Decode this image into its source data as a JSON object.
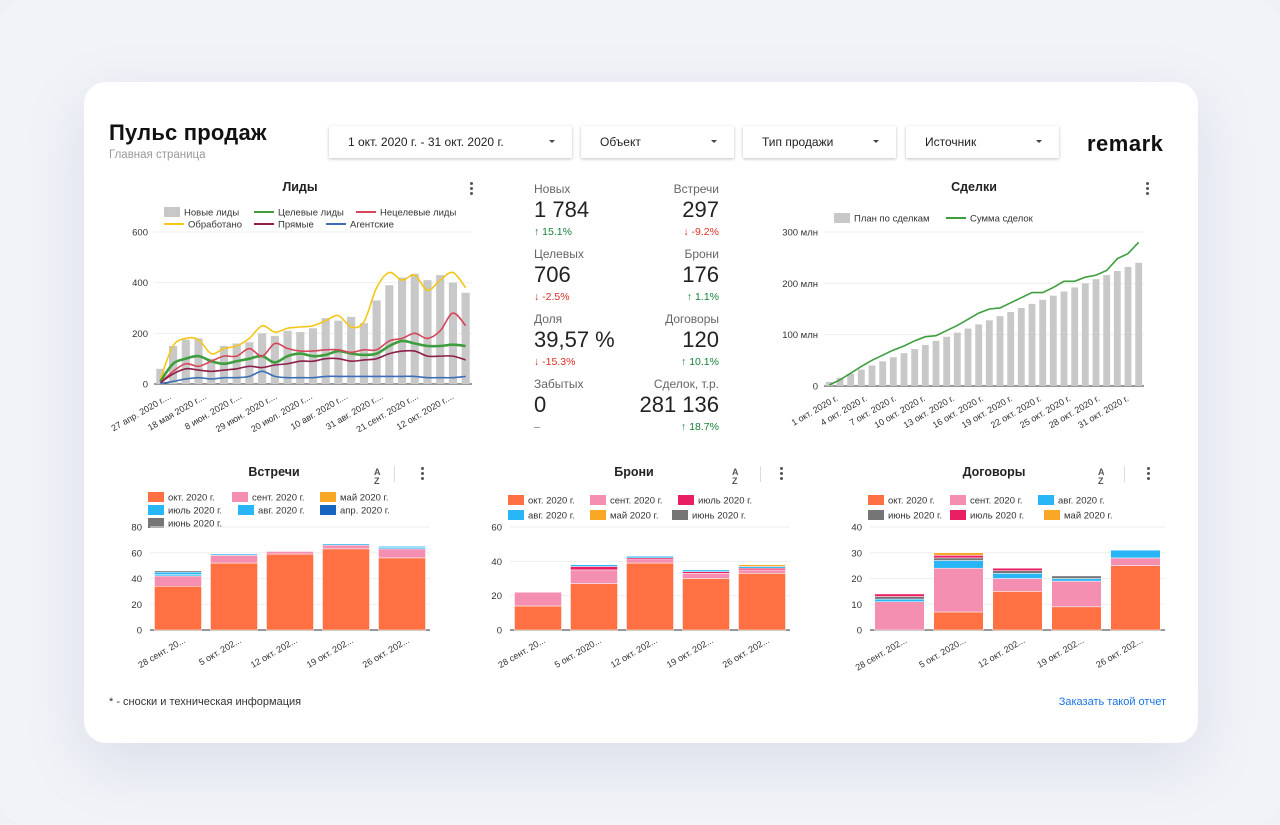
{
  "header": {
    "title": "Пульс продаж",
    "subtitle": "Главная страница",
    "logo": "remark"
  },
  "filters": {
    "date": "1 окт. 2020 г. - 31 окт. 2020 г.",
    "object": "Объект",
    "sale_type": "Тип продажи",
    "source": "Источник"
  },
  "kpi": {
    "new_label": "Новых",
    "new_value": "1 784",
    "new_change": "↑ 15.1%",
    "meet_label": "Встречи",
    "meet_value": "297",
    "meet_change": "↓ -9.2%",
    "target_label": "Целевых",
    "target_value": "706",
    "target_change": "↓ -2.5%",
    "book_label": "Брони",
    "book_value": "176",
    "book_change": "↑ 1.1%",
    "share_label": "Доля",
    "share_value": "39,57 %",
    "share_change": "↓ -15.3%",
    "contract_label": "Договоры",
    "contract_value": "120",
    "contract_change": "↑ 10.1%",
    "forgot_label": "Забытых",
    "forgot_value": "0",
    "forgot_change": "–",
    "deals_label": "Сделок, т.р.",
    "deals_value": "281 136",
    "deals_change": "↑ 18.7%"
  },
  "footer": {
    "note": "* - сноски и техническая информация",
    "order_link": "Заказать такой отчет"
  },
  "colors": {
    "bar_gray": "#c8c8c8",
    "green": "#3e9e3e",
    "red": "#d6455a",
    "yellow": "#f5c518",
    "maroon": "#8e1f4a",
    "blue": "#3b6fb6",
    "oct": "#ff7043",
    "sep": "#f48fb1",
    "may": "#f9a825",
    "jul": "#29b6f6",
    "aug": "#29b6f6",
    "apr": "#1565c0",
    "jun": "#757575",
    "jul_pink": "#e91e63"
  },
  "chart_data": [
    {
      "id": "leads",
      "type": "bar+line",
      "title": "Лиды",
      "legend": [
        "Новые лиды",
        "Целевые лиды",
        "Нецелевые лиды",
        "Обработано",
        "Прямые",
        "Агентские"
      ],
      "ylim": [
        0,
        600
      ],
      "yticks": [
        "0",
        "200",
        "400",
        "600"
      ],
      "xticks": [
        "27 апр. 2020 г....",
        "18 мая 2020 г....",
        "8 июн. 2020 г....",
        "29 июн. 2020 г....",
        "20 июл. 2020 г....",
        "10 авг. 2020 г....",
        "31 авг. 2020 г....",
        "21 сент. 2020 г....",
        "12 окт. 2020 г...."
      ],
      "bars": [
        60,
        150,
        175,
        180,
        100,
        150,
        160,
        165,
        200,
        190,
        210,
        205,
        220,
        260,
        250,
        265,
        240,
        330,
        390,
        420,
        435,
        410,
        430,
        400,
        360
      ],
      "series": [
        {
          "name": "Обработано",
          "values": [
            20,
            150,
            180,
            175,
            120,
            140,
            150,
            180,
            230,
            205,
            220,
            225,
            230,
            250,
            270,
            225,
            245,
            380,
            440,
            410,
            430,
            370,
            410,
            440,
            380
          ]
        },
        {
          "name": "Целевые лиды",
          "values": [
            10,
            80,
            100,
            110,
            90,
            80,
            90,
            100,
            110,
            85,
            110,
            120,
            110,
            115,
            130,
            120,
            115,
            120,
            150,
            170,
            160,
            150,
            150,
            155,
            150
          ]
        },
        {
          "name": "Нецелевые лиды",
          "values": [
            5,
            50,
            80,
            70,
            90,
            110,
            110,
            140,
            110,
            160,
            140,
            130,
            130,
            135,
            135,
            125,
            135,
            135,
            170,
            180,
            200,
            180,
            210,
            280,
            230
          ]
        },
        {
          "name": "Прямые",
          "values": [
            5,
            40,
            60,
            55,
            50,
            55,
            60,
            70,
            65,
            75,
            80,
            90,
            90,
            100,
            100,
            90,
            95,
            100,
            120,
            130,
            130,
            110,
            110,
            110,
            95
          ]
        },
        {
          "name": "Агентские",
          "values": [
            2,
            10,
            20,
            25,
            20,
            25,
            25,
            30,
            50,
            30,
            25,
            25,
            25,
            30,
            30,
            30,
            30,
            30,
            30,
            30,
            30,
            25,
            25,
            25,
            30
          ]
        }
      ]
    },
    {
      "id": "deals",
      "type": "bar+line",
      "title": "Сделки",
      "legend": [
        "План по сделкам",
        "Сумма сделок"
      ],
      "ylim": [
        0,
        300
      ],
      "yticks": [
        "0",
        "100 млн",
        "200 млн",
        "300 млн"
      ],
      "xticks": [
        "1 окт. 2020 г.",
        "4 окт. 2020 г.",
        "7 окт. 2020 г.",
        "10 окт. 2020 г.",
        "13 окт. 2020 г.",
        "16 окт. 2020 г.",
        "19 окт. 2020 г.",
        "22 окт. 2020 г.",
        "25 окт. 2020 г.",
        "28 окт. 2020 г.",
        "31 окт. 2020 г."
      ],
      "bars": [
        8,
        16,
        24,
        32,
        40,
        48,
        56,
        64,
        72,
        80,
        88,
        96,
        104,
        112,
        120,
        128,
        136,
        144,
        152,
        160,
        168,
        176,
        184,
        192,
        200,
        208,
        216,
        224,
        232,
        240
      ],
      "series": [
        {
          "name": "Сумма сделок",
          "values": [
            2,
            12,
            25,
            38,
            50,
            60,
            70,
            78,
            88,
            96,
            98,
            108,
            118,
            130,
            142,
            150,
            152,
            162,
            172,
            182,
            182,
            192,
            204,
            204,
            212,
            216,
            225,
            248,
            258,
            280
          ]
        }
      ]
    },
    {
      "id": "meetings",
      "type": "stacked-bar",
      "title": "Встречи",
      "legend": [
        "окт. 2020 г.",
        "сент. 2020 г.",
        "май 2020 г.",
        "июль 2020 г.",
        "авг. 2020 г.",
        "апр. 2020 г.",
        "июнь 2020 г."
      ],
      "ylim": [
        0,
        80
      ],
      "yticks": [
        "0",
        "20",
        "40",
        "60",
        "80"
      ],
      "categories": [
        "28 сент. 20...",
        "5 окт. 202...",
        "12 окт. 202...",
        "19 окт. 202...",
        "26 окт. 202..."
      ],
      "series": [
        {
          "name": "окт. 2020 г.",
          "values": [
            34,
            52,
            59,
            63,
            56
          ]
        },
        {
          "name": "сент. 2020 г.",
          "values": [
            8,
            6,
            2,
            3,
            7
          ]
        },
        {
          "name": "июль 2020 г.",
          "values": [
            1,
            1,
            0,
            1,
            1
          ]
        },
        {
          "name": "авг. 2020 г.",
          "values": [
            2,
            0,
            0,
            0,
            1
          ]
        },
        {
          "name": "июнь 2020 г.",
          "values": [
            1,
            0,
            0,
            0,
            0
          ]
        }
      ]
    },
    {
      "id": "bookings",
      "type": "stacked-bar",
      "title": "Брони",
      "legend": [
        "окт. 2020 г.",
        "сент. 2020 г.",
        "июль 2020 г.",
        "авг. 2020 г.",
        "май 2020 г.",
        "июнь 2020 г."
      ],
      "ylim": [
        0,
        60
      ],
      "yticks": [
        "0",
        "20",
        "40",
        "60"
      ],
      "categories": [
        "28 сент. 20...",
        "5 окт. 2020...",
        "12 окт. 202...",
        "19 окт. 202...",
        "26 окт. 202..."
      ],
      "series": [
        {
          "name": "окт. 2020 г.",
          "values": [
            14,
            27,
            39,
            30,
            33
          ]
        },
        {
          "name": "сент. 2020 г.",
          "values": [
            8,
            8,
            2,
            3,
            2
          ]
        },
        {
          "name": "июль 2020 г.",
          "values": [
            0,
            2,
            1,
            1,
            1
          ]
        },
        {
          "name": "авг. 2020 г.",
          "values": [
            0,
            1,
            1,
            1,
            1
          ]
        },
        {
          "name": "май 2020 г.",
          "values": [
            0,
            0,
            0,
            0,
            1
          ]
        }
      ]
    },
    {
      "id": "contracts",
      "type": "stacked-bar",
      "title": "Договоры",
      "legend": [
        "окт. 2020 г.",
        "сент. 2020 г.",
        "авг. 2020 г.",
        "июнь 2020 г.",
        "июль 2020 г.",
        "май 2020 г."
      ],
      "ylim": [
        0,
        40
      ],
      "yticks": [
        "0",
        "10",
        "20",
        "30",
        "40"
      ],
      "categories": [
        "28 сент. 202...",
        "5 окт. 2020...",
        "12 окт. 202...",
        "19 окт. 202...",
        "26 окт. 202..."
      ],
      "series": [
        {
          "name": "окт. 2020 г.",
          "values": [
            0,
            7,
            15,
            9,
            25
          ]
        },
        {
          "name": "сент. 2020 г.",
          "values": [
            11,
            17,
            5,
            10,
            3
          ]
        },
        {
          "name": "авг. 2020 г.",
          "values": [
            1,
            3,
            2,
            1,
            3
          ]
        },
        {
          "name": "июнь 2020 г.",
          "values": [
            1,
            1,
            1,
            1,
            0
          ]
        },
        {
          "name": "июль 2020 г.",
          "values": [
            1,
            1,
            1,
            0,
            0
          ]
        },
        {
          "name": "май 2020 г.",
          "values": [
            0,
            1,
            0,
            0,
            0
          ]
        }
      ]
    }
  ]
}
